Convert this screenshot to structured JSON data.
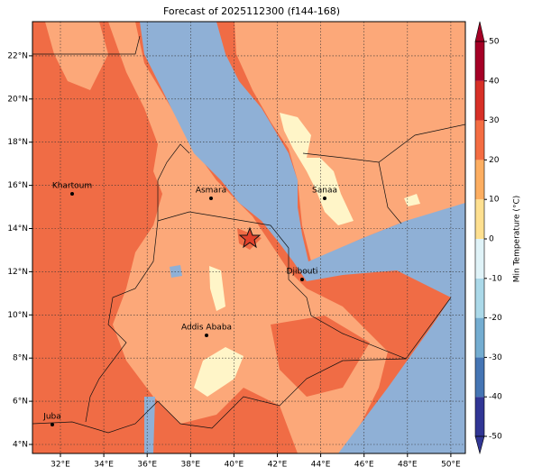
{
  "title": "Forecast of 2025112300 (f144-168)",
  "map": {
    "lon_ticks": [
      "32°E",
      "34°E",
      "36°E",
      "38°E",
      "40°E",
      "42°E",
      "44°E",
      "46°E",
      "48°E",
      "50°E"
    ],
    "lat_ticks": [
      "4°N",
      "6°N",
      "8°N",
      "10°N",
      "12°N",
      "14°N",
      "16°N",
      "18°N",
      "20°N",
      "22°N"
    ],
    "cities": [
      "Khartoum",
      "Asmara",
      "Sanaa",
      "Djibouti",
      "Addis Ababa",
      "Juba"
    ]
  },
  "colorbar": {
    "label": "Min Temperature (°C)",
    "ticks": [
      50,
      40,
      30,
      20,
      10,
      0,
      -10,
      -20,
      -30,
      -40,
      -50
    ],
    "colors": [
      "#313695",
      "#4575b4",
      "#74add1",
      "#abd9e9",
      "#e0f3f8",
      "#fee090",
      "#fdae61",
      "#f46d43",
      "#d73027",
      "#a50026"
    ]
  }
}
